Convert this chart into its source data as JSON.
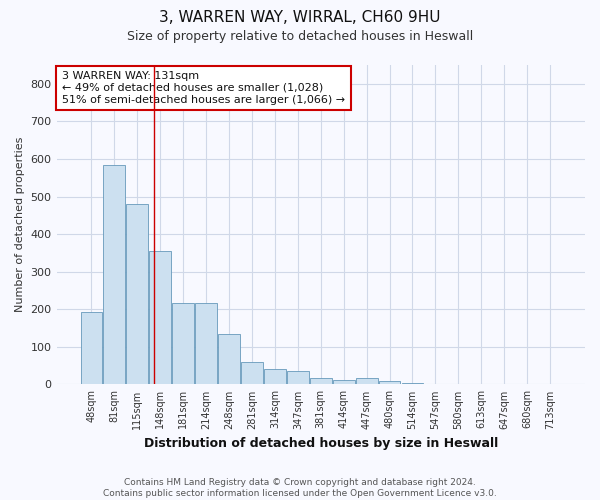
{
  "title1": "3, WARREN WAY, WIRRAL, CH60 9HU",
  "title2": "Size of property relative to detached houses in Heswall",
  "xlabel": "Distribution of detached houses by size in Heswall",
  "ylabel": "Number of detached properties",
  "footnote": "Contains HM Land Registry data © Crown copyright and database right 2024.\nContains public sector information licensed under the Open Government Licence v3.0.",
  "categories": [
    "48sqm",
    "81sqm",
    "115sqm",
    "148sqm",
    "181sqm",
    "214sqm",
    "248sqm",
    "281sqm",
    "314sqm",
    "347sqm",
    "381sqm",
    "414sqm",
    "447sqm",
    "480sqm",
    "514sqm",
    "547sqm",
    "580sqm",
    "613sqm",
    "647sqm",
    "680sqm",
    "713sqm"
  ],
  "values": [
    192,
    585,
    480,
    355,
    218,
    218,
    133,
    60,
    42,
    37,
    17,
    12,
    17,
    8,
    3,
    2,
    1,
    1,
    0,
    0,
    0
  ],
  "bar_color": "#cce0f0",
  "bar_edge_color": "#6699bb",
  "background_color": "#f8f9ff",
  "grid_color": "#d0d8e8",
  "annotation_text": "3 WARREN WAY: 131sqm\n← 49% of detached houses are smaller (1,028)\n51% of semi-detached houses are larger (1,066) →",
  "annotation_box_color": "#ffffff",
  "annotation_box_edge": "#cc0000",
  "red_line_x": 2.72,
  "ylim": [
    0,
    850
  ],
  "yticks": [
    0,
    100,
    200,
    300,
    400,
    500,
    600,
    700,
    800
  ]
}
